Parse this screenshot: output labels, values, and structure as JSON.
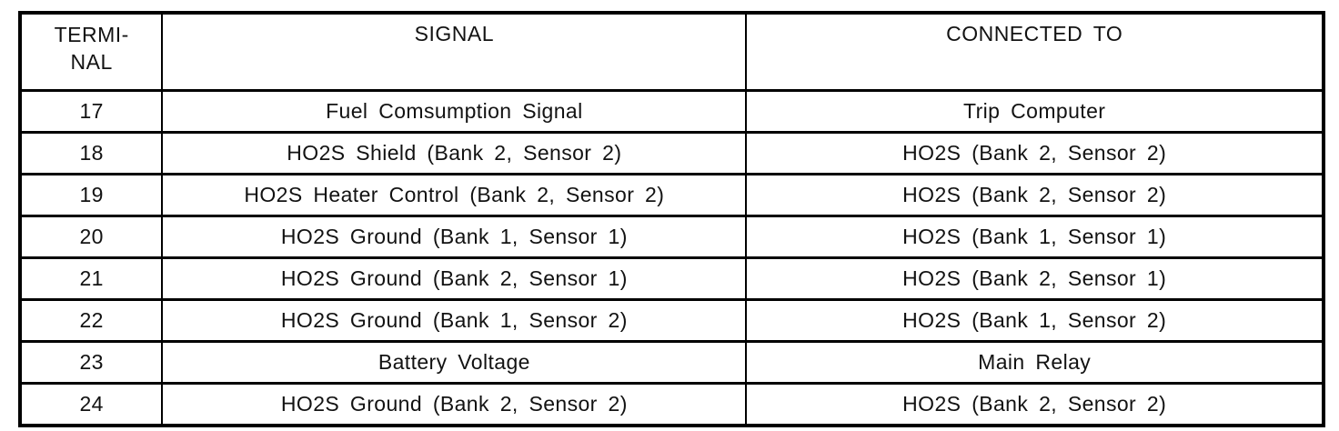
{
  "table": {
    "header": {
      "terminal_line1": "TERMI-",
      "terminal_line2": "NAL",
      "signal": "SIGNAL",
      "connected_to": "CONNECTED TO"
    },
    "rows": [
      {
        "terminal": "17",
        "signal": "Fuel Comsumption Signal",
        "connected_to": "Trip Computer"
      },
      {
        "terminal": "18",
        "signal": "HO2S Shield (Bank 2, Sensor 2)",
        "connected_to": "HO2S (Bank 2, Sensor 2)"
      },
      {
        "terminal": "19",
        "signal": "HO2S Heater Control (Bank 2, Sensor 2)",
        "connected_to": "HO2S (Bank 2, Sensor 2)"
      },
      {
        "terminal": "20",
        "signal": "HO2S Ground (Bank 1, Sensor 1)",
        "connected_to": "HO2S (Bank 1, Sensor 1)"
      },
      {
        "terminal": "21",
        "signal": "HO2S Ground (Bank 2, Sensor 1)",
        "connected_to": "HO2S (Bank 2, Sensor 1)"
      },
      {
        "terminal": "22",
        "signal": "HO2S Ground (Bank 1, Sensor 2)",
        "connected_to": "HO2S (Bank 1, Sensor 2)"
      },
      {
        "terminal": "23",
        "signal": "Battery Voltage",
        "connected_to": "Main Relay"
      },
      {
        "terminal": "24",
        "signal": "HO2S Ground (Bank 2, Sensor 2)",
        "connected_to": "HO2S (Bank 2, Sensor 2)"
      }
    ],
    "colors": {
      "ink": "#121212",
      "paper": "#ffffff",
      "border": "#000000"
    }
  }
}
